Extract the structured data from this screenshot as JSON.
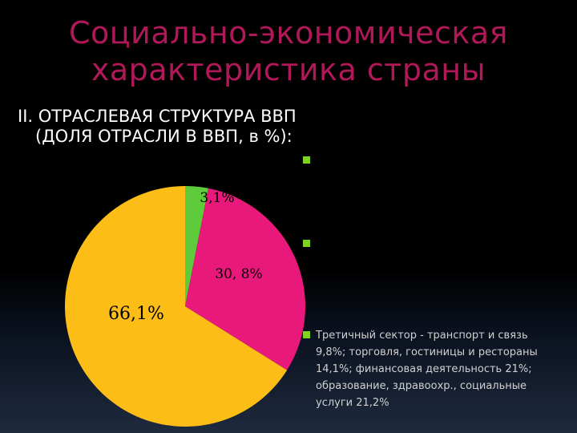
{
  "slide": {
    "title_line1": "Социально-экономическая",
    "title_line2": "характеристика страны",
    "subtitle_line1": "II. ОТРАСЛЕВАЯ СТРУКТУРА ВВП",
    "subtitle_line2": "(ДОЛЯ ОТРАСЛИ В ВВП, в %):"
  },
  "legend": [
    {
      "text": "",
      "bullet_color": "#7ed321"
    },
    {
      "text": "",
      "bullet_color": "#7ed321"
    },
    {
      "text": "Третичный сектор - транспорт и связь 9,8%; торговля, гостиницы и рестораны 14,1%; финансовая деятельность 21%; образование, здравоохр., социальные услуги 21,2%",
      "bullet_color": "#7ed321"
    }
  ],
  "chart_data": {
    "type": "pie",
    "slices": [
      {
        "value": 3.1,
        "label": "3,1%",
        "color": "#5ecb3a"
      },
      {
        "value": 30.8,
        "label": "30, 8%",
        "color": "#e8197a"
      },
      {
        "value": 66.1,
        "label": "66,1%",
        "color": "#fbbd16"
      }
    ]
  }
}
